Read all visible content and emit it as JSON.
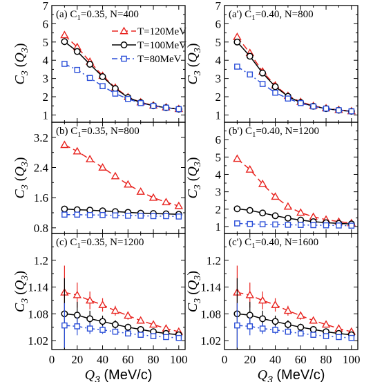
{
  "figure": {
    "x_label": "Q3 (MeV/c)",
    "y_label": "C3 (Q3)"
  },
  "chart_data": [
    {
      "type": "line",
      "panel_label": "(a)",
      "title": "C1=0.35, N=400",
      "x": [
        10,
        20,
        30,
        40,
        50,
        60,
        70,
        80,
        90,
        100
      ],
      "xlim": [
        0,
        105
      ],
      "ylim": [
        0.6,
        7.0
      ],
      "yticks": [
        1,
        2,
        3,
        4,
        5,
        6,
        7
      ],
      "ytick_labels": [
        "1",
        "2",
        "3",
        "4",
        "5",
        "6",
        "7"
      ],
      "series": [
        {
          "name": "T=120MeV",
          "color": "#e8231f",
          "marker": "triangle",
          "dash": "9,5",
          "values": [
            5.38,
            4.72,
            3.92,
            3.15,
            2.5,
            1.98,
            1.7,
            1.52,
            1.42,
            1.33
          ]
        },
        {
          "name": "T=100MeV",
          "color": "#000000",
          "marker": "circle",
          "dash": "",
          "values": [
            5.02,
            4.48,
            3.78,
            3.1,
            2.45,
            1.96,
            1.68,
            1.5,
            1.4,
            1.32
          ]
        },
        {
          "name": "T=80MeV",
          "color": "#2b4fd8",
          "marker": "square",
          "dash": "8,4,2,4",
          "values": [
            3.8,
            3.47,
            3.03,
            2.58,
            2.17,
            1.88,
            1.65,
            1.5,
            1.4,
            1.32
          ]
        }
      ],
      "legend": {
        "placement": "top-right"
      }
    },
    {
      "type": "line",
      "panel_label": "(a')",
      "title": "C1=0.40, N=800",
      "x": [
        10,
        20,
        30,
        40,
        50,
        60,
        70,
        80,
        90,
        100
      ],
      "xlim": [
        0,
        105
      ],
      "ylim": [
        0.6,
        7.0
      ],
      "yticks": [
        1,
        2,
        3,
        4,
        5,
        6,
        7
      ],
      "ytick_labels": [
        "1",
        "2",
        "3",
        "4",
        "5",
        "6",
        "7"
      ],
      "series": [
        {
          "name": "T=120MeV",
          "color": "#e8231f",
          "marker": "triangle",
          "dash": "9,5",
          "values": [
            5.28,
            4.4,
            3.38,
            2.62,
            2.05,
            1.72,
            1.5,
            1.37,
            1.28,
            1.21
          ]
        },
        {
          "name": "T=100MeV",
          "color": "#000000",
          "marker": "circle",
          "dash": "",
          "values": [
            5.0,
            4.22,
            3.3,
            2.55,
            2.02,
            1.68,
            1.48,
            1.35,
            1.26,
            1.2
          ]
        },
        {
          "name": "T=80MeV",
          "color": "#2b4fd8",
          "marker": "square",
          "dash": "8,4,2,4",
          "values": [
            3.65,
            3.22,
            2.7,
            2.22,
            1.9,
            1.65,
            1.47,
            1.35,
            1.26,
            1.2
          ]
        }
      ]
    },
    {
      "type": "line",
      "panel_label": "(b)",
      "title": "C1=0.35, N=800",
      "x": [
        10,
        20,
        30,
        40,
        50,
        60,
        70,
        80,
        90,
        100
      ],
      "xlim": [
        0,
        105
      ],
      "ylim": [
        0.65,
        3.6
      ],
      "yticks": [
        0.8,
        1.6,
        2.4,
        3.2
      ],
      "ytick_labels": [
        "0.8",
        "1.6",
        "2.4",
        "3.2"
      ],
      "series": [
        {
          "name": "T=120MeV",
          "color": "#e8231f",
          "marker": "triangle",
          "dash": "9,5",
          "values": [
            3.0,
            2.83,
            2.62,
            2.4,
            2.17,
            1.95,
            1.76,
            1.6,
            1.48,
            1.38
          ]
        },
        {
          "name": "T=100MeV",
          "color": "#000000",
          "marker": "circle",
          "dash": "",
          "values": [
            1.3,
            1.28,
            1.27,
            1.25,
            1.23,
            1.21,
            1.19,
            1.18,
            1.17,
            1.16
          ]
        },
        {
          "name": "T=80MeV",
          "color": "#2b4fd8",
          "marker": "square",
          "dash": "8,4,2,4",
          "values": [
            1.15,
            1.15,
            1.14,
            1.14,
            1.13,
            1.12,
            1.12,
            1.11,
            1.11,
            1.1
          ]
        }
      ]
    },
    {
      "type": "line",
      "panel_label": "(b')",
      "title": "C1=0.40, N=1200",
      "x": [
        10,
        20,
        30,
        40,
        50,
        60,
        70,
        80,
        90,
        100
      ],
      "xlim": [
        0,
        105
      ],
      "ylim": [
        0.6,
        7.0
      ],
      "yticks": [
        1,
        2,
        3,
        4,
        5,
        6
      ],
      "ytick_labels": [
        "1",
        "2",
        "3",
        "4",
        "5",
        "6"
      ],
      "series": [
        {
          "name": "T=120MeV",
          "color": "#e8231f",
          "marker": "triangle",
          "dash": "9,5",
          "values": [
            4.9,
            4.28,
            3.45,
            2.72,
            2.15,
            1.8,
            1.56,
            1.4,
            1.28,
            1.2
          ]
        },
        {
          "name": "T=100MeV",
          "color": "#000000",
          "marker": "circle",
          "dash": "",
          "values": [
            2.02,
            1.93,
            1.78,
            1.62,
            1.48,
            1.37,
            1.28,
            1.22,
            1.18,
            1.15
          ]
        },
        {
          "name": "T=80MeV",
          "color": "#2b4fd8",
          "marker": "square",
          "dash": "8,4,2,4",
          "values": [
            1.18,
            1.15,
            1.13,
            1.12,
            1.1,
            1.09,
            1.08,
            1.07,
            1.06,
            1.05
          ]
        }
      ]
    },
    {
      "type": "line",
      "panel_label": "(c)",
      "title": "C1=0.35, N=1200",
      "x": [
        10,
        20,
        30,
        40,
        50,
        60,
        70,
        80,
        90,
        100
      ],
      "xlim": [
        0,
        105
      ],
      "ylim": [
        1.0,
        1.26
      ],
      "yticks": [
        1.02,
        1.08,
        1.14,
        1.2
      ],
      "ytick_labels": [
        "1.02",
        "1.08",
        "1.14",
        "1.2"
      ],
      "series": [
        {
          "name": "T=120MeV",
          "color": "#e8231f",
          "marker": "triangle",
          "dash": "9,5",
          "values": [
            1.128,
            1.122,
            1.11,
            1.1,
            1.087,
            1.076,
            1.065,
            1.056,
            1.047,
            1.04
          ],
          "errors": [
            0.06,
            0.028,
            0.02,
            0.015,
            0.011,
            0.009,
            0.007,
            0.006,
            0.005,
            0.004
          ]
        },
        {
          "name": "T=100MeV",
          "color": "#000000",
          "marker": "circle",
          "dash": "",
          "values": [
            1.08,
            1.077,
            1.069,
            1.063,
            1.056,
            1.05,
            1.045,
            1.04,
            1.036,
            1.033
          ],
          "errors": [
            0.08,
            0.03,
            0.018,
            0.013,
            0.01,
            0.008,
            0.006,
            0.005,
            0.004,
            0.004
          ]
        },
        {
          "name": "T=80MeV",
          "color": "#2b4fd8",
          "marker": "square",
          "dash": "8,4,2,4",
          "values": [
            1.054,
            1.052,
            1.047,
            1.044,
            1.04,
            1.036,
            1.033,
            1.03,
            1.028,
            1.026
          ],
          "errors": [
            0.05,
            0.02,
            0.012,
            0.009,
            0.007,
            0.005,
            0.004,
            0.004,
            0.003,
            0.003
          ]
        }
      ]
    },
    {
      "type": "line",
      "panel_label": "(c')",
      "title": "C1=0.40, N=1600",
      "x": [
        10,
        20,
        30,
        40,
        50,
        60,
        70,
        80,
        90,
        100
      ],
      "xlim": [
        0,
        105
      ],
      "ylim": [
        1.0,
        1.26
      ],
      "yticks": [
        1.02,
        1.08,
        1.14,
        1.2
      ],
      "ytick_labels": [
        "1.02",
        "1.08",
        "1.14",
        "1.2"
      ],
      "series": [
        {
          "name": "T=120MeV",
          "color": "#e8231f",
          "marker": "triangle",
          "dash": "9,5",
          "values": [
            1.128,
            1.122,
            1.11,
            1.1,
            1.087,
            1.076,
            1.065,
            1.056,
            1.047,
            1.04
          ],
          "errors": [
            0.06,
            0.028,
            0.02,
            0.015,
            0.011,
            0.009,
            0.007,
            0.006,
            0.005,
            0.004
          ]
        },
        {
          "name": "T=100MeV",
          "color": "#000000",
          "marker": "circle",
          "dash": "",
          "values": [
            1.08,
            1.077,
            1.069,
            1.063,
            1.056,
            1.05,
            1.045,
            1.04,
            1.036,
            1.033
          ],
          "errors": [
            0.08,
            0.03,
            0.018,
            0.013,
            0.01,
            0.008,
            0.006,
            0.005,
            0.004,
            0.004
          ]
        },
        {
          "name": "T=80MeV",
          "color": "#2b4fd8",
          "marker": "square",
          "dash": "8,4,2,4",
          "values": [
            1.054,
            1.052,
            1.047,
            1.044,
            1.04,
            1.036,
            1.033,
            1.03,
            1.028,
            1.026
          ],
          "errors": [
            0.05,
            0.02,
            0.012,
            0.009,
            0.007,
            0.005,
            0.004,
            0.004,
            0.003,
            0.003
          ]
        }
      ]
    }
  ],
  "x_axis": {
    "ticks": [
      0,
      20,
      40,
      60,
      80,
      100
    ],
    "tick_labels": [
      "0",
      "20",
      "40",
      "60",
      "80",
      "100"
    ]
  }
}
